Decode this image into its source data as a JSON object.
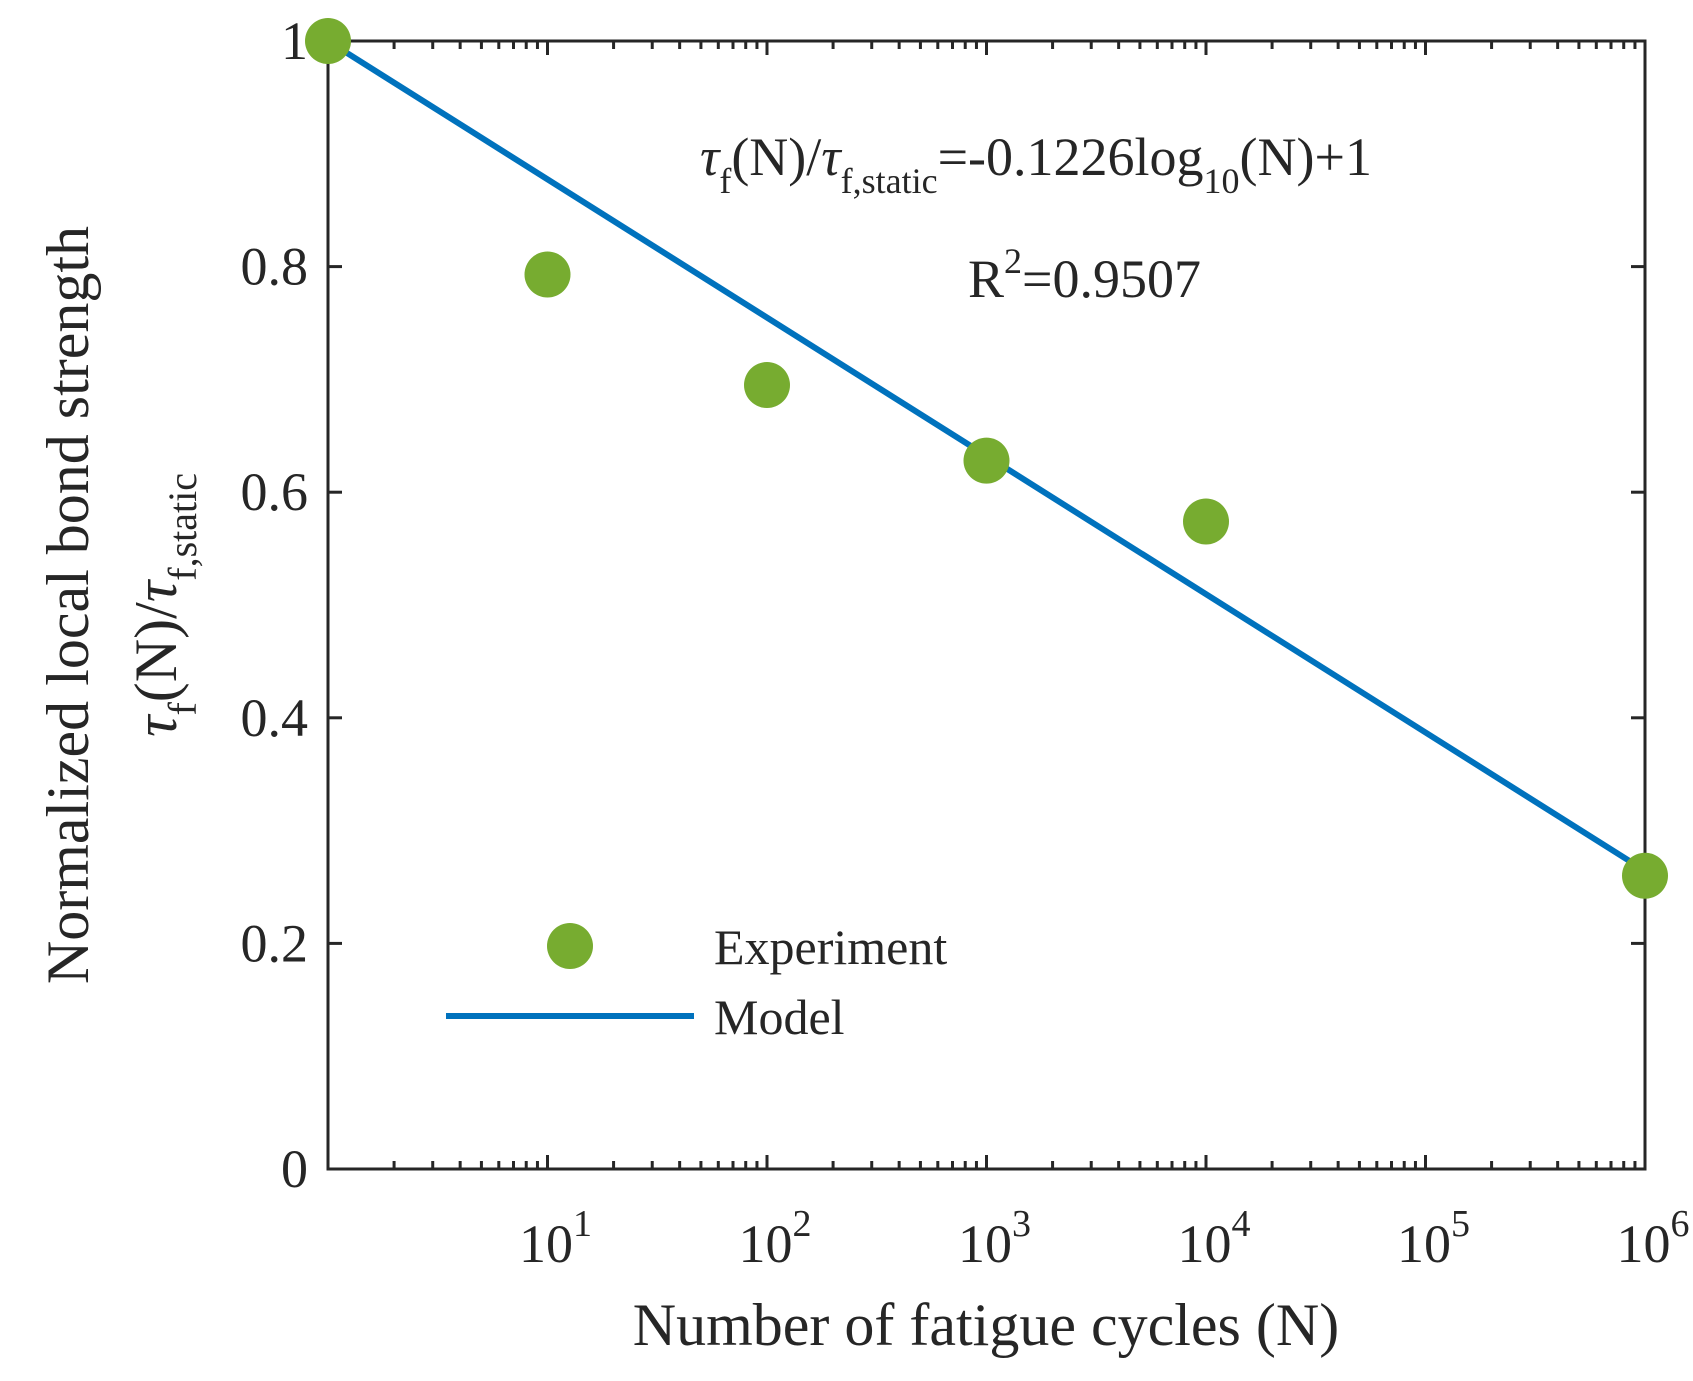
{
  "chart_data": {
    "type": "scatter",
    "title": "",
    "xlabel": "Number of fatigue cycles (N)",
    "ylabel_line1": "Normalized local bond strength",
    "ylabel_line2": {
      "tau": "τ",
      "sub_f": "f",
      "mid": "(N)/",
      "tau2": "τ",
      "sub_static": "f,static"
    },
    "xscale": "log",
    "xlim": [
      1,
      1000000
    ],
    "ylim": [
      0,
      1
    ],
    "x_ticks": [
      {
        "value": 10,
        "base": "10",
        "exp": "1"
      },
      {
        "value": 100,
        "base": "10",
        "exp": "2"
      },
      {
        "value": 1000,
        "base": "10",
        "exp": "3"
      },
      {
        "value": 10000,
        "base": "10",
        "exp": "4"
      },
      {
        "value": 100000,
        "base": "10",
        "exp": "5"
      },
      {
        "value": 1000000,
        "base": "10",
        "exp": "6"
      }
    ],
    "y_ticks": [
      {
        "value": 0,
        "label": "0"
      },
      {
        "value": 0.2,
        "label": "0.2"
      },
      {
        "value": 0.4,
        "label": "0.4"
      },
      {
        "value": 0.6,
        "label": "0.6"
      },
      {
        "value": 0.8,
        "label": "0.8"
      },
      {
        "value": 1,
        "label": "1"
      }
    ],
    "series": [
      {
        "name": "Experiment",
        "kind": "scatter",
        "color": "#77ac30",
        "x": [
          1,
          10,
          100,
          1000,
          10000,
          1000000
        ],
        "y": [
          1.0,
          0.793,
          0.695,
          0.628,
          0.574,
          0.26
        ]
      },
      {
        "name": "Model",
        "kind": "line",
        "color": "#0072bd",
        "slope": -0.1226,
        "intercept": 1,
        "x": [
          1,
          1000000
        ],
        "y": [
          1.0,
          0.2644
        ]
      }
    ],
    "annotation": {
      "equation": {
        "tau": "τ",
        "sub_f": "f",
        "mid": "(N)/",
        "tau2": "τ",
        "sub_static": "f,static",
        "rhs": "=-0.1226log",
        "sub_10": "10",
        "tail": "(N)+1"
      },
      "r2": {
        "base": "R",
        "exp": "2",
        "value": "=0.9507"
      }
    },
    "legend": {
      "position": "bottom-left",
      "entries": [
        "Experiment",
        "Model"
      ]
    }
  }
}
